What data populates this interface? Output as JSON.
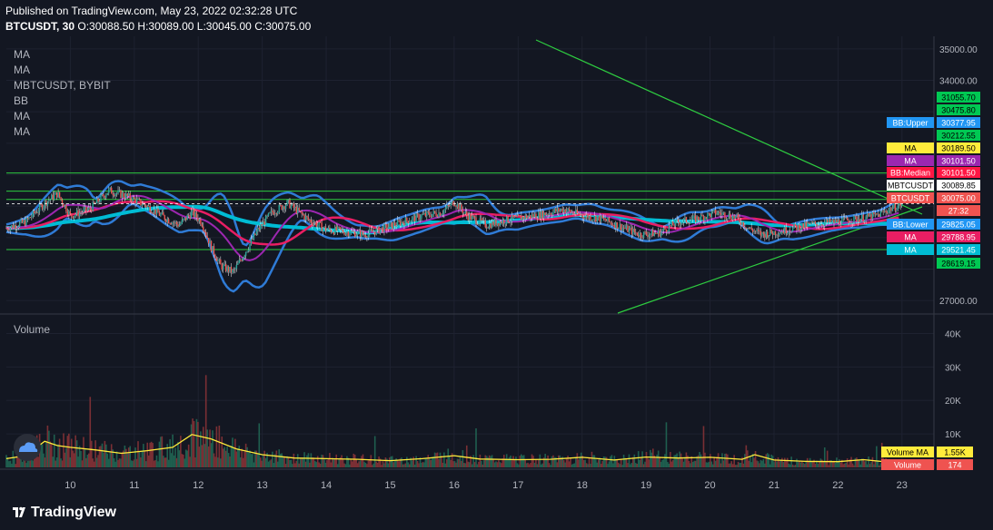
{
  "header": {
    "published": "Published on TradingView.com, May 23, 2022 02:32:28 UTC",
    "symbol": "BTCUSDT, 30",
    "ohlc": "O:30088.50 H:30089.00 L:30045.00 C:30075.00"
  },
  "legend": [
    "MA",
    "MA",
    "MBTCUSDT, BYBIT",
    "BB",
    "MA",
    "MA"
  ],
  "volume_label": "Volume",
  "brand": "TradingView",
  "colors": {
    "background": "#131722",
    "grid": "#1e2230",
    "bb_band": "#2f7bd6",
    "ma_cyan": "#00bcd4",
    "ma_magenta": "#9c27b0",
    "ma_pink": "#e91e63",
    "trendline": "#2ecc40",
    "candle_up": "#26a69a",
    "candle_down": "#ef5350",
    "volume_ma": "#ffeb3b"
  },
  "price_axis": [
    "35000.00",
    "34000.00",
    "27000.00"
  ],
  "price_labels": [
    {
      "text": "31055.70",
      "bg": "#00c853",
      "fg": "#000000"
    },
    {
      "text": "30475.80",
      "bg": "#00c853",
      "fg": "#000000"
    },
    {
      "text": "BB:Upper",
      "value": "30377.95",
      "bg": "#2196f3",
      "fg": "#ffffff"
    },
    {
      "text": "30212.55",
      "bg": "#00c853",
      "fg": "#000000"
    },
    {
      "text": "MA",
      "value": "30189.50",
      "bg": "#ffeb3b",
      "fg": "#000000"
    },
    {
      "text": "MA",
      "value": "30101.50",
      "bg": "#9c27b0",
      "fg": "#ffffff"
    },
    {
      "text": "BB:Median",
      "value": "30101.50",
      "bg": "#ff1744",
      "fg": "#ffffff"
    },
    {
      "text": "MBTCUSDT",
      "value": "30089.85",
      "bg": "#ffffff",
      "fg": "#000000"
    },
    {
      "text": "BTCUSDT",
      "value": "30075.00",
      "bg": "#ef5350",
      "fg": "#ffffff"
    },
    {
      "text": "27:32",
      "bg": "#ef5350",
      "fg": "#ffffff"
    },
    {
      "text": "BB:Lower",
      "value": "29825.05",
      "bg": "#2196f3",
      "fg": "#ffffff"
    },
    {
      "text": "MA",
      "value": "29788.95",
      "bg": "#e91e63",
      "fg": "#ffffff"
    },
    {
      "text": "MA",
      "value": "29521.45",
      "bg": "#00bcd4",
      "fg": "#ffffff"
    },
    {
      "text": "28619.15",
      "bg": "#00c853",
      "fg": "#000000"
    }
  ],
  "volume_axis": [
    "40K",
    "30K",
    "20K",
    "10K"
  ],
  "volume_labels": [
    {
      "text": "Volume MA",
      "value": "1.55K",
      "bg": "#ffeb3b",
      "fg": "#000000"
    },
    {
      "text": "Volume",
      "value": "174",
      "bg": "#ef5350",
      "fg": "#ffffff"
    }
  ],
  "chart_data": {
    "type": "line",
    "symbol": "BTCUSDT",
    "interval": "30",
    "x_ticks": [
      "10",
      "11",
      "12",
      "13",
      "14",
      "15",
      "16",
      "17",
      "18",
      "19",
      "20",
      "21",
      "22",
      "23"
    ],
    "price_ylim": [
      26600,
      35400
    ],
    "horizontal_levels": [
      31055.7,
      30475.8,
      30212.55,
      28619.15
    ],
    "price_path": [
      [
        9.0,
        29300
      ],
      [
        9.3,
        29500
      ],
      [
        9.6,
        30100
      ],
      [
        9.8,
        30400
      ],
      [
        10.0,
        29700
      ],
      [
        10.3,
        29900
      ],
      [
        10.6,
        30500
      ],
      [
        10.9,
        30300
      ],
      [
        11.2,
        30000
      ],
      [
        11.5,
        29600
      ],
      [
        11.7,
        29400
      ],
      [
        11.9,
        29800
      ],
      [
        12.05,
        29500
      ],
      [
        12.2,
        28700
      ],
      [
        12.35,
        28100
      ],
      [
        12.55,
        27900
      ],
      [
        12.75,
        28600
      ],
      [
        12.95,
        29300
      ],
      [
        13.15,
        29800
      ],
      [
        13.4,
        30100
      ],
      [
        13.7,
        29600
      ],
      [
        14.0,
        29250
      ],
      [
        14.3,
        29200
      ],
      [
        14.6,
        29100
      ],
      [
        14.9,
        29300
      ],
      [
        15.2,
        29500
      ],
      [
        15.5,
        29700
      ],
      [
        15.8,
        29800
      ],
      [
        16.0,
        30150
      ],
      [
        16.2,
        29700
      ],
      [
        16.5,
        29400
      ],
      [
        16.8,
        29550
      ],
      [
        17.1,
        29650
      ],
      [
        17.4,
        29750
      ],
      [
        17.7,
        29900
      ],
      [
        18.0,
        29700
      ],
      [
        18.3,
        29600
      ],
      [
        18.6,
        29350
      ],
      [
        18.9,
        29100
      ],
      [
        19.2,
        29150
      ],
      [
        19.5,
        29500
      ],
      [
        19.8,
        29600
      ],
      [
        20.1,
        29800
      ],
      [
        20.4,
        29650
      ],
      [
        20.6,
        29300
      ],
      [
        20.8,
        29100
      ],
      [
        21.1,
        29200
      ],
      [
        21.4,
        29350
      ],
      [
        21.7,
        29450
      ],
      [
        22.0,
        29500
      ],
      [
        22.3,
        29600
      ],
      [
        22.6,
        29700
      ],
      [
        22.8,
        29900
      ],
      [
        23.0,
        30075
      ]
    ],
    "volume_ylim": [
      0,
      45000
    ],
    "volume_ma": [
      [
        9.0,
        2600
      ],
      [
        9.3,
        3500
      ],
      [
        9.6,
        7800
      ],
      [
        9.8,
        6500
      ],
      [
        10.0,
        6000
      ],
      [
        10.4,
        5200
      ],
      [
        10.8,
        4200
      ],
      [
        11.2,
        5000
      ],
      [
        11.6,
        6000
      ],
      [
        11.9,
        9800
      ],
      [
        12.2,
        8500
      ],
      [
        12.6,
        5500
      ],
      [
        13.0,
        3800
      ],
      [
        13.5,
        2800
      ],
      [
        14.0,
        2600
      ],
      [
        14.5,
        2400
      ],
      [
        15.0,
        2000
      ],
      [
        15.5,
        2600
      ],
      [
        16.0,
        3500
      ],
      [
        16.4,
        2500
      ],
      [
        17.0,
        2300
      ],
      [
        17.5,
        2400
      ],
      [
        18.0,
        3000
      ],
      [
        18.5,
        2200
      ],
      [
        19.0,
        3100
      ],
      [
        19.5,
        2800
      ],
      [
        20.0,
        3000
      ],
      [
        20.5,
        2400
      ],
      [
        20.7,
        3800
      ],
      [
        21.0,
        2200
      ],
      [
        21.5,
        1800
      ],
      [
        22.0,
        1700
      ],
      [
        22.4,
        2300
      ],
      [
        22.8,
        1550
      ],
      [
        23.0,
        1550
      ]
    ],
    "volume_last": 174
  }
}
